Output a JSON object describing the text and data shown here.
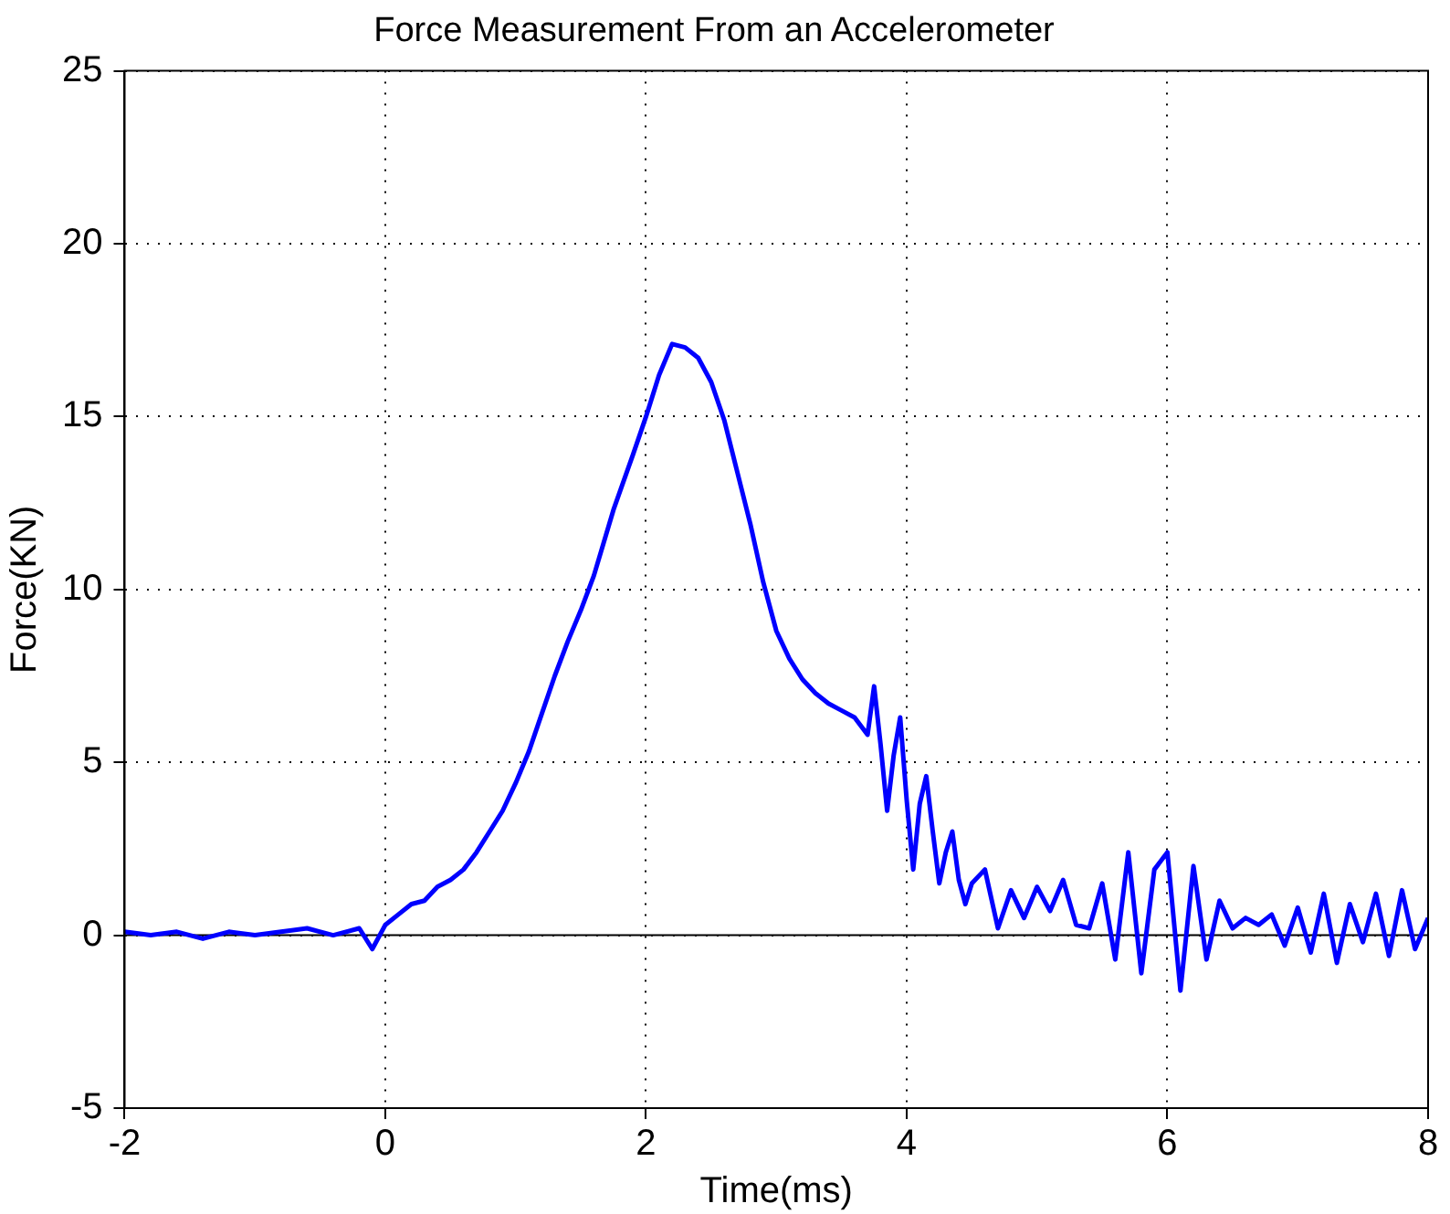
{
  "chart_data": {
    "type": "line",
    "title": "Force Measurement From an Accelerometer",
    "xlabel": "Time(ms)",
    "ylabel": "Force(KN)",
    "x": [
      -2,
      -1.8,
      -1.6,
      -1.4,
      -1.2,
      -1,
      -0.8,
      -0.6,
      -0.4,
      -0.2,
      -0.1,
      0,
      0.1,
      0.2,
      0.3,
      0.4,
      0.5,
      0.6,
      0.7,
      0.8,
      0.9,
      1,
      1.1,
      1.2,
      1.3,
      1.4,
      1.5,
      1.6,
      1.75,
      1.9,
      2,
      2.1,
      2.2,
      2.3,
      2.4,
      2.5,
      2.6,
      2.7,
      2.8,
      2.9,
      3,
      3.1,
      3.2,
      3.3,
      3.4,
      3.5,
      3.6,
      3.7,
      3.75,
      3.8,
      3.85,
      3.9,
      3.95,
      4,
      4.05,
      4.1,
      4.15,
      4.2,
      4.25,
      4.3,
      4.35,
      4.4,
      4.45,
      4.5,
      4.6,
      4.7,
      4.8,
      4.9,
      5,
      5.1,
      5.2,
      5.3,
      5.4,
      5.5,
      5.6,
      5.7,
      5.8,
      5.9,
      6,
      6.1,
      6.2,
      6.3,
      6.4,
      6.5,
      6.6,
      6.7,
      6.8,
      6.9,
      7,
      7.1,
      7.2,
      7.3,
      7.4,
      7.5,
      7.6,
      7.7,
      7.8,
      7.9,
      8
    ],
    "series": [
      {
        "color": "#0000ff",
        "values": [
          0.1,
          0,
          0.1,
          -0.1,
          0.1,
          0,
          0.1,
          0.2,
          0,
          0.2,
          -0.4,
          0.3,
          0.6,
          0.9,
          1,
          1.4,
          1.6,
          1.9,
          2.4,
          3,
          3.6,
          4.4,
          5.3,
          6.4,
          7.5,
          8.5,
          9.4,
          10.4,
          12.3,
          13.9,
          15,
          16.2,
          17.1,
          17,
          16.7,
          16,
          14.9,
          13.4,
          11.9,
          10.2,
          8.8,
          8,
          7.4,
          7,
          6.7,
          6.5,
          6.3,
          5.8,
          7.2,
          5.5,
          3.6,
          5.2,
          6.3,
          3.9,
          1.9,
          3.8,
          4.6,
          3,
          1.5,
          2.4,
          3,
          1.6,
          0.9,
          1.5,
          1.9,
          0.2,
          1.3,
          0.5,
          1.4,
          0.7,
          1.6,
          0.3,
          0.2,
          1.5,
          -0.7,
          2.4,
          -1.1,
          1.9,
          2.4,
          -1.6,
          2,
          -0.7,
          1,
          0.2,
          0.5,
          0.3,
          0.6,
          -0.3,
          0.8,
          -0.5,
          1.2,
          -0.8,
          0.9,
          -0.2,
          1.2,
          -0.6,
          1.3,
          -0.4,
          0.5
        ]
      }
    ],
    "xlim": [
      -2,
      8
    ],
    "xticks": [
      -2,
      0,
      2,
      4,
      6,
      8
    ],
    "ylim": [
      -5,
      25
    ],
    "yticks": [
      -5,
      0,
      5,
      10,
      15,
      20,
      25
    ],
    "grid": true,
    "legend": false,
    "marker": "none",
    "line_style": "solid",
    "ref_lines": [
      {
        "axis": "y",
        "value": 0,
        "color": "#000000"
      }
    ]
  }
}
